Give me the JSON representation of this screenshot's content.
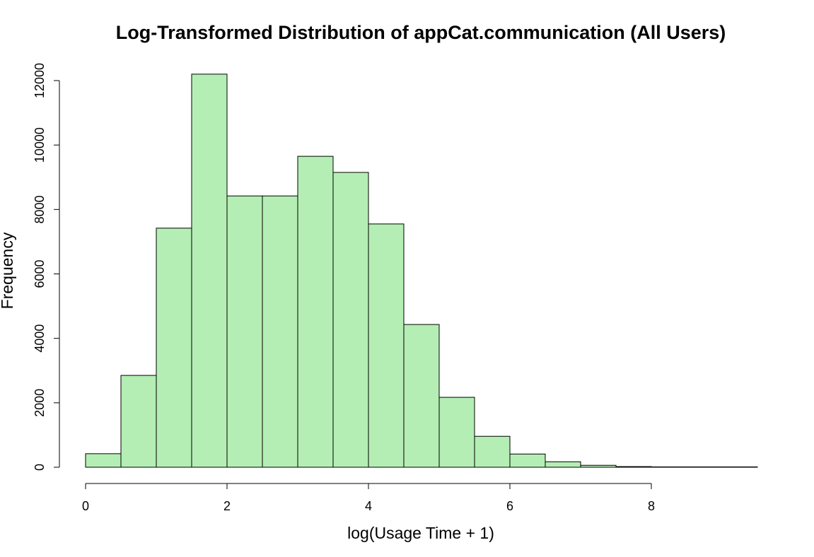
{
  "chart_data": {
    "type": "bar",
    "title": "Log-Transformed Distribution of appCat.communication (All Users)",
    "xlabel": "log(Usage Time + 1)",
    "ylabel": "Frequency",
    "bin_width": 0.5,
    "bins": [
      {
        "x0": 0.0,
        "x1": 0.5,
        "count": 420
      },
      {
        "x0": 0.5,
        "x1": 1.0,
        "count": 2850
      },
      {
        "x0": 1.0,
        "x1": 1.5,
        "count": 7420
      },
      {
        "x0": 1.5,
        "x1": 2.0,
        "count": 12200
      },
      {
        "x0": 2.0,
        "x1": 2.5,
        "count": 8420
      },
      {
        "x0": 2.5,
        "x1": 3.0,
        "count": 8420
      },
      {
        "x0": 3.0,
        "x1": 3.5,
        "count": 9650
      },
      {
        "x0": 3.5,
        "x1": 4.0,
        "count": 9150
      },
      {
        "x0": 4.0,
        "x1": 4.5,
        "count": 7550
      },
      {
        "x0": 4.5,
        "x1": 5.0,
        "count": 4430
      },
      {
        "x0": 5.0,
        "x1": 5.5,
        "count": 2170
      },
      {
        "x0": 5.5,
        "x1": 6.0,
        "count": 960
      },
      {
        "x0": 6.0,
        "x1": 6.5,
        "count": 410
      },
      {
        "x0": 6.5,
        "x1": 7.0,
        "count": 170
      },
      {
        "x0": 7.0,
        "x1": 7.5,
        "count": 60
      },
      {
        "x0": 7.5,
        "x1": 8.0,
        "count": 20
      },
      {
        "x0": 8.0,
        "x1": 8.5,
        "count": 5
      },
      {
        "x0": 8.5,
        "x1": 9.0,
        "count": 2
      },
      {
        "x0": 9.0,
        "x1": 9.5,
        "count": 1
      }
    ],
    "xlim": [
      0,
      9.5
    ],
    "ylim": [
      0,
      12000
    ],
    "x_ticks": [
      0,
      2,
      4,
      6,
      8
    ],
    "x_tick_labels": [
      "0",
      "2",
      "4",
      "6",
      "8"
    ],
    "y_ticks": [
      0,
      2000,
      4000,
      6000,
      8000,
      10000,
      12000
    ],
    "y_tick_labels": [
      "0",
      "2000",
      "4000",
      "6000",
      "8000",
      "10000",
      "12000"
    ],
    "bar_color": "#b4eeb4",
    "grid": false,
    "legend": "none"
  }
}
